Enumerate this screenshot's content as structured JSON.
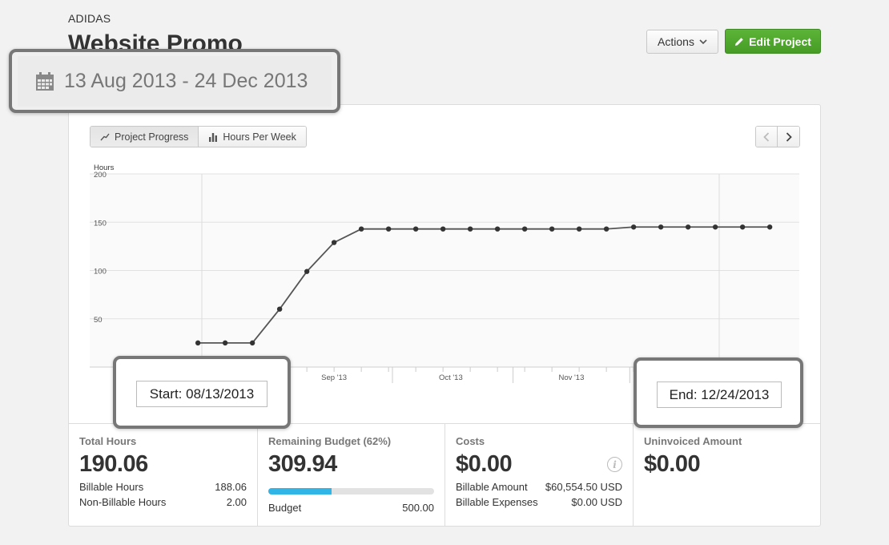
{
  "header": {
    "client": "ADIDAS",
    "project_title": "Website Promo",
    "date_range": "13 Aug 2013 - 24 Dec 2013",
    "actions_label": "Actions",
    "edit_label": "Edit Project"
  },
  "chart_tabs": [
    {
      "label": "Project Progress",
      "icon": "line-chart-icon",
      "active": true
    },
    {
      "label": "Hours Per Week",
      "icon": "bar-chart-icon",
      "active": false
    }
  ],
  "chart_data": {
    "type": "line",
    "ylabel": "Hours",
    "ylim": [
      0,
      200
    ],
    "yticks": [
      50,
      100,
      150,
      200
    ],
    "x_tick_labels": [
      "Sep '13",
      "Oct '13",
      "Nov '13"
    ],
    "x": [
      "2013-08-12",
      "2013-08-19",
      "2013-08-26",
      "2013-09-02",
      "2013-09-09",
      "2013-09-16",
      "2013-09-23",
      "2013-09-30",
      "2013-10-07",
      "2013-10-14",
      "2013-10-21",
      "2013-10-28",
      "2013-11-04",
      "2013-11-11",
      "2013-11-18",
      "2013-11-25",
      "2013-12-02",
      "2013-12-09",
      "2013-12-16",
      "2013-12-23",
      "2013-12-30",
      "2014-01-06"
    ],
    "series": [
      {
        "values": [
          25,
          25,
          25,
          60,
          99,
          129,
          143,
          143,
          143,
          143,
          143,
          143,
          143,
          143,
          143,
          143,
          145,
          145,
          145,
          145,
          145,
          145
        ]
      }
    ],
    "grid": true,
    "color": "#555555"
  },
  "annotations": {
    "start": "Start: 08/13/2013",
    "end": "End: 12/24/2013"
  },
  "stats": {
    "total_hours": {
      "label": "Total Hours",
      "value": "190.06",
      "rows": [
        {
          "label": "Billable Hours",
          "value": "188.06"
        },
        {
          "label": "Non-Billable Hours",
          "value": "2.00"
        }
      ]
    },
    "remaining_budget": {
      "label": "Remaining Budget (62%)",
      "value": "309.94",
      "progress": 0.38,
      "budget_label": "Budget",
      "budget_value": "500.00"
    },
    "costs": {
      "label": "Costs",
      "value": "$0.00",
      "rows": [
        {
          "label": "Billable Amount",
          "value": "$60,554.50 USD"
        },
        {
          "label": "Billable Expenses",
          "value": "$0.00 USD"
        }
      ]
    },
    "uninvoiced": {
      "label": "Uninvoiced Amount",
      "value": "$0.00"
    }
  },
  "colors": {
    "accent_green": "#4ea82b",
    "progress_blue": "#31b4e6"
  }
}
